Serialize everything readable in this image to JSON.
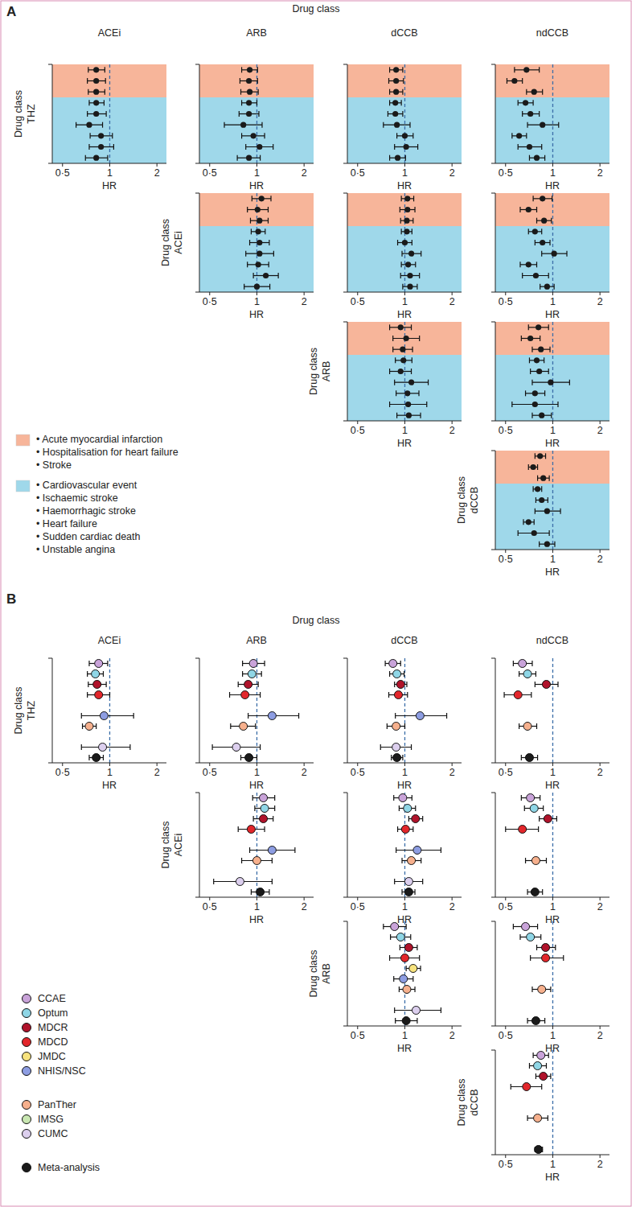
{
  "chart_data": {
    "type": "forest",
    "log": "x",
    "xlim": [
      0.43,
      2.3
    ],
    "xticks": [
      {
        "value": 0.5,
        "label": "0·5"
      },
      1,
      2
    ],
    "xlabel": "HR",
    "reference_value": 1,
    "row_axis_label": "Drug class",
    "column_axis_label": "Drug class",
    "rows": [
      "THZ",
      "ACEi",
      "ARB",
      "dCCB"
    ],
    "columns": [
      "ACEi",
      "ARB",
      "dCCB",
      "ndCCB"
    ],
    "panels": [
      {
        "label": "A",
        "color": "#1a1a1a",
        "outcome_groups": [
          {
            "color": "#f7b59a",
            "items": [
              "• Acute myocardial infarction",
              "• Hospitalisation for heart failure",
              "• Stroke"
            ]
          },
          {
            "color": "#9fd8ea",
            "items": [
              "• Cardiovascular event",
              "• Ischaemic stroke",
              "• Haemorrhagic stroke",
              "• Heart failure",
              "• Sudden cardiac death",
              "• Unstable angina"
            ]
          }
        ],
        "plots": [
          [
            {
              "values": [
                0.82,
                0.82,
                0.82,
                0.82,
                0.82,
                0.74,
                0.88,
                0.88,
                0.82
              ],
              "lower": [
                0.73,
                0.72,
                0.73,
                0.74,
                0.72,
                0.61,
                0.75,
                0.74,
                0.7
              ],
              "upper": [
                0.93,
                0.94,
                0.93,
                0.92,
                0.95,
                0.9,
                1.04,
                1.06,
                0.97
              ]
            },
            {
              "values": [
                0.9,
                0.89,
                0.9,
                0.89,
                0.89,
                0.82,
                0.95,
                1.04,
                0.89
              ],
              "lower": [
                0.8,
                0.78,
                0.79,
                0.8,
                0.77,
                0.62,
                0.8,
                0.85,
                0.75
              ],
              "upper": [
                1.01,
                1.01,
                1.02,
                1.0,
                1.03,
                1.08,
                1.12,
                1.27,
                1.05
              ]
            },
            {
              "values": [
                0.88,
                0.88,
                0.88,
                0.87,
                0.87,
                0.89,
                1.0,
                1.02,
                0.9
              ],
              "lower": [
                0.8,
                0.79,
                0.8,
                0.8,
                0.78,
                0.73,
                0.89,
                0.86,
                0.8
              ],
              "upper": [
                0.97,
                0.98,
                0.97,
                0.95,
                0.97,
                1.08,
                1.13,
                1.21,
                1.01
              ]
            },
            {
              "values": [
                0.68,
                0.57,
                0.76,
                0.67,
                0.72,
                0.86,
                0.61,
                0.71,
                0.79
              ],
              "lower": [
                0.57,
                0.51,
                0.68,
                0.6,
                0.64,
                0.69,
                0.55,
                0.6,
                0.71
              ],
              "upper": [
                0.82,
                0.64,
                0.86,
                0.75,
                0.82,
                1.09,
                0.68,
                0.85,
                0.89
              ]
            }
          ],
          [
            null,
            {
              "values": [
                1.07,
                1.01,
                1.04,
                1.02,
                1.04,
                1.04,
                1.02,
                1.14,
                1.0
              ],
              "lower": [
                0.93,
                0.87,
                0.91,
                0.92,
                0.9,
                0.85,
                0.87,
                0.95,
                0.83
              ],
              "upper": [
                1.23,
                1.18,
                1.18,
                1.13,
                1.2,
                1.28,
                1.19,
                1.37,
                1.21
              ]
            },
            {
              "values": [
                1.04,
                1.04,
                1.03,
                1.03,
                1.0,
                1.1,
                1.05,
                1.08,
                1.08
              ],
              "lower": [
                0.95,
                0.93,
                0.94,
                0.95,
                0.9,
                0.96,
                0.95,
                0.94,
                0.97
              ],
              "upper": [
                1.14,
                1.16,
                1.13,
                1.11,
                1.11,
                1.27,
                1.17,
                1.24,
                1.2
              ]
            },
            {
              "values": [
                0.86,
                0.7,
                0.88,
                0.77,
                0.86,
                1.02,
                0.7,
                0.78,
                0.92
              ],
              "lower": [
                0.75,
                0.62,
                0.79,
                0.7,
                0.77,
                0.85,
                0.62,
                0.64,
                0.83
              ],
              "upper": [
                0.99,
                0.79,
                0.98,
                0.85,
                0.96,
                1.23,
                0.79,
                0.94,
                1.02
              ]
            }
          ],
          [
            null,
            null,
            {
              "values": [
                0.94,
                1.02,
                0.97,
                0.98,
                0.94,
                1.1,
                1.04,
                1.05,
                1.06
              ],
              "lower": [
                0.8,
                0.84,
                0.84,
                0.87,
                0.8,
                0.86,
                0.88,
                0.8,
                0.89
              ],
              "upper": [
                1.1,
                1.24,
                1.12,
                1.11,
                1.1,
                1.41,
                1.23,
                1.38,
                1.26
              ]
            },
            {
              "values": [
                0.81,
                0.72,
                0.84,
                0.79,
                0.82,
                0.97,
                0.77,
                0.77,
                0.85
              ],
              "lower": [
                0.7,
                0.63,
                0.74,
                0.71,
                0.72,
                0.74,
                0.67,
                0.55,
                0.74
              ],
              "upper": [
                0.94,
                0.83,
                0.96,
                0.88,
                0.94,
                1.28,
                0.89,
                1.08,
                0.98
              ]
            }
          ],
          [
            null,
            null,
            null,
            {
              "values": [
                0.83,
                0.75,
                0.87,
                0.8,
                0.85,
                0.92,
                0.7,
                0.76,
                0.92
              ],
              "lower": [
                0.77,
                0.7,
                0.8,
                0.75,
                0.78,
                0.77,
                0.65,
                0.6,
                0.82
              ],
              "upper": [
                0.9,
                0.8,
                0.95,
                0.85,
                0.93,
                1.12,
                0.76,
                0.95,
                1.03
              ]
            }
          ]
        ]
      },
      {
        "label": "B",
        "database_groups": [
          [
            {
              "name": "CCAE",
              "color": "#c9a3d9"
            },
            {
              "name": "Optum",
              "color": "#8fd6e6"
            },
            {
              "name": "MDCR",
              "color": "#b0132b"
            },
            {
              "name": "MDCD",
              "color": "#e2262b"
            },
            {
              "name": "JMDC",
              "color": "#f7e37e"
            },
            {
              "name": "NHIS/NSC",
              "color": "#8d9de2"
            }
          ],
          [
            {
              "name": "PanTher",
              "color": "#f6b08d"
            },
            {
              "name": "IMSG",
              "color": "#c9e7b2"
            },
            {
              "name": "CUMC",
              "color": "#dccfee"
            }
          ],
          [
            {
              "name": "Meta-analysis",
              "color": "#1a1a1a"
            }
          ]
        ],
        "plots": [
          [
            {
              "values": [
                0.85,
                0.81,
                0.83,
                0.85,
                null,
                0.92,
                0.74,
                null,
                0.9,
                0.82
              ],
              "lower": [
                0.74,
                0.72,
                0.73,
                0.72,
                null,
                0.66,
                0.67,
                null,
                0.66,
                0.74
              ],
              "upper": [
                0.97,
                0.91,
                0.95,
                1.0,
                null,
                1.42,
                0.82,
                null,
                1.35,
                0.91
              ]
            },
            {
              "values": [
                0.95,
                0.93,
                0.88,
                0.84,
                null,
                1.25,
                0.82,
                null,
                0.74,
                0.89
              ],
              "lower": [
                0.81,
                0.81,
                0.76,
                0.67,
                null,
                0.88,
                0.68,
                null,
                0.52,
                0.79
              ],
              "upper": [
                1.12,
                1.07,
                1.02,
                1.05,
                null,
                1.85,
                0.98,
                null,
                1.05,
                1.0
              ]
            },
            {
              "values": [
                0.84,
                0.89,
                0.94,
                0.91,
                null,
                1.25,
                0.88,
                null,
                0.88,
                0.89
              ],
              "lower": [
                0.75,
                0.8,
                0.86,
                0.79,
                null,
                0.87,
                0.77,
                null,
                0.7,
                0.82
              ],
              "upper": [
                0.94,
                0.99,
                1.03,
                1.04,
                null,
                1.85,
                1.0,
                null,
                1.1,
                0.97
              ]
            },
            {
              "values": [
                0.64,
                0.69,
                0.91,
                0.6,
                null,
                null,
                0.69,
                null,
                null,
                0.71
              ],
              "lower": [
                0.56,
                0.61,
                0.77,
                0.49,
                null,
                null,
                0.61,
                null,
                null,
                0.63
              ],
              "upper": [
                0.74,
                0.78,
                1.08,
                0.73,
                null,
                null,
                0.79,
                null,
                null,
                0.8
              ]
            }
          ],
          [
            null,
            {
              "values": [
                1.1,
                1.12,
                1.1,
                0.92,
                null,
                1.25,
                1.0,
                null,
                0.78,
                1.05
              ],
              "lower": [
                0.94,
                0.97,
                0.95,
                0.76,
                null,
                0.9,
                0.8,
                null,
                0.53,
                0.92
              ],
              "upper": [
                1.3,
                1.3,
                1.27,
                1.12,
                null,
                1.75,
                1.25,
                null,
                1.25,
                1.2
              ]
            },
            {
              "values": [
                0.97,
                1.04,
                1.17,
                1.01,
                null,
                1.2,
                1.1,
                null,
                1.06,
                1.06
              ],
              "lower": [
                0.85,
                0.92,
                1.06,
                0.9,
                null,
                0.88,
                0.96,
                null,
                0.86,
                0.96
              ],
              "upper": [
                1.11,
                1.17,
                1.3,
                1.13,
                null,
                1.7,
                1.27,
                null,
                1.3,
                1.16
              ]
            },
            {
              "values": [
                0.72,
                0.76,
                0.93,
                0.64,
                null,
                null,
                0.78,
                null,
                null,
                0.77
              ],
              "lower": [
                0.63,
                0.66,
                0.82,
                0.5,
                null,
                null,
                0.67,
                null,
                null,
                0.69
              ],
              "upper": [
                0.83,
                0.87,
                1.06,
                0.81,
                null,
                null,
                0.91,
                null,
                null,
                0.86
              ]
            }
          ],
          [
            null,
            null,
            {
              "values": [
                0.86,
                0.94,
                1.06,
                1.0,
                1.13,
                0.98,
                1.03,
                null,
                1.18,
                1.02
              ],
              "lower": [
                0.73,
                0.81,
                0.93,
                0.8,
                1.02,
                0.85,
                0.92,
                null,
                0.86,
                0.87
              ],
              "upper": [
                1.02,
                1.09,
                1.2,
                1.24,
                1.26,
                1.13,
                1.16,
                null,
                1.7,
                1.2
              ]
            },
            {
              "values": [
                0.67,
                0.72,
                0.9,
                0.9,
                null,
                null,
                0.85,
                null,
                null,
                0.78
              ],
              "lower": [
                0.56,
                0.62,
                0.79,
                0.72,
                null,
                null,
                0.74,
                null,
                null,
                0.69
              ],
              "upper": [
                0.8,
                0.84,
                1.04,
                1.17,
                null,
                null,
                0.97,
                null,
                null,
                0.89
              ]
            }
          ],
          [
            null,
            null,
            null,
            {
              "values": [
                0.84,
                0.8,
                0.87,
                0.68,
                null,
                null,
                0.8,
                null,
                null,
                0.81
              ],
              "lower": [
                0.75,
                0.71,
                0.78,
                0.54,
                null,
                null,
                0.69,
                null,
                null,
                0.77
              ],
              "upper": [
                0.94,
                0.91,
                0.97,
                0.85,
                null,
                null,
                0.93,
                null,
                null,
                0.86
              ]
            }
          ]
        ]
      }
    ]
  }
}
